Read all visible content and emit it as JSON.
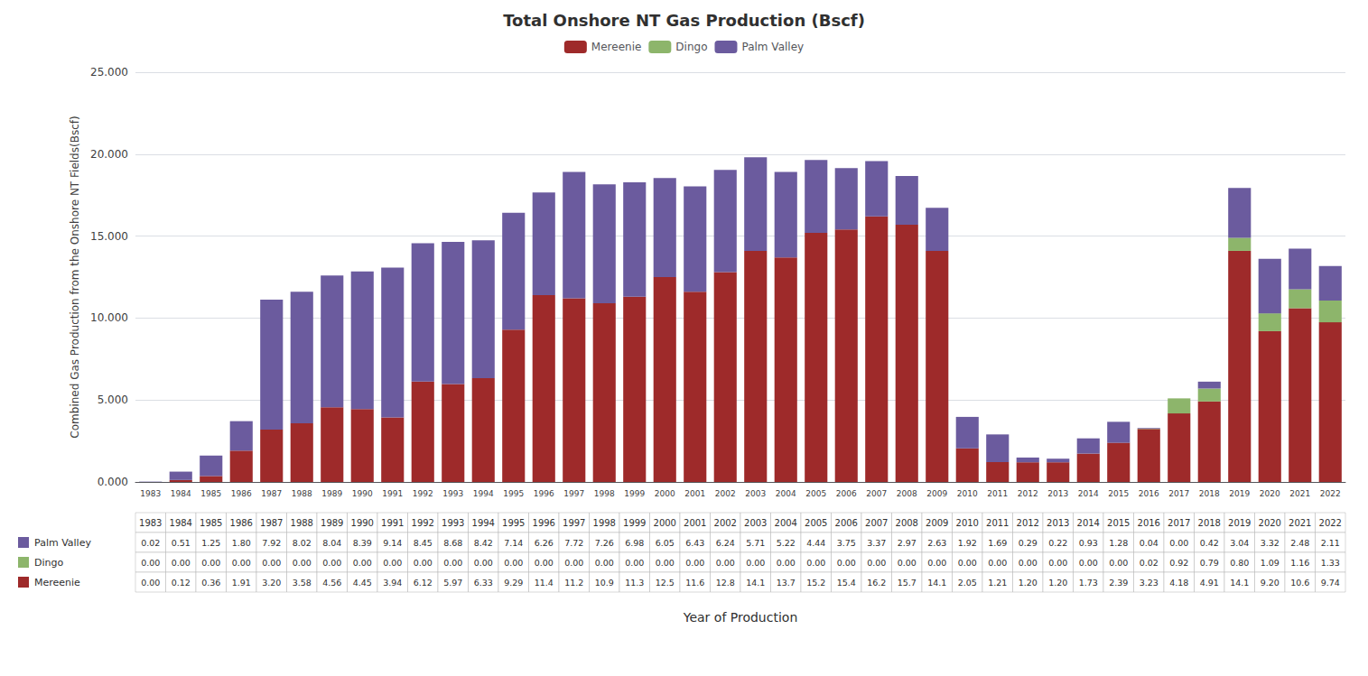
{
  "chart_data": {
    "type": "bar",
    "stacked": true,
    "title": "Total Onshore NT Gas Production (Bscf)",
    "ylabel": "Combined Gas Production from the Onshore NT Fields(Bscf)",
    "xlabel": "Year of Production",
    "categories": [
      "1983",
      "1984",
      "1985",
      "1986",
      "1987",
      "1988",
      "1989",
      "1990",
      "1991",
      "1992",
      "1993",
      "1994",
      "1995",
      "1996",
      "1997",
      "1998",
      "1999",
      "2000",
      "2001",
      "2002",
      "2003",
      "2004",
      "2005",
      "2006",
      "2007",
      "2008",
      "2009",
      "2010",
      "2011",
      "2012",
      "2013",
      "2014",
      "2015",
      "2016",
      "2017",
      "2018",
      "2019",
      "2020",
      "2021",
      "2022"
    ],
    "series": [
      {
        "name": "Mereenie",
        "color": "#9e2a2a",
        "values": [
          0.0,
          0.12,
          0.36,
          1.91,
          3.2,
          3.58,
          4.56,
          4.45,
          3.94,
          6.12,
          5.97,
          6.33,
          9.29,
          11.4,
          11.2,
          10.9,
          11.3,
          12.5,
          11.6,
          12.8,
          14.1,
          13.7,
          15.2,
          15.4,
          16.2,
          15.7,
          14.1,
          2.05,
          1.21,
          1.2,
          1.2,
          1.73,
          2.39,
          3.23,
          4.18,
          4.91,
          14.1,
          9.2,
          10.6,
          9.74
        ],
        "value_labels": [
          "0.00",
          "0.12",
          "0.36",
          "1.91",
          "3.20",
          "3.58",
          "4.56",
          "4.45",
          "3.94",
          "6.12",
          "5.97",
          "6.33",
          "9.29",
          "11.4",
          "11.2",
          "10.9",
          "11.3",
          "12.5",
          "11.6",
          "12.8",
          "14.1",
          "13.7",
          "15.2",
          "15.4",
          "16.2",
          "15.7",
          "14.1",
          "2.05",
          "1.21",
          "1.20",
          "1.20",
          "1.73",
          "2.39",
          "3.23",
          "4.18",
          "4.91",
          "14.1",
          "9.20",
          "10.6",
          "9.74"
        ]
      },
      {
        "name": "Dingo",
        "color": "#8db56b",
        "values": [
          0.0,
          0.0,
          0.0,
          0.0,
          0.0,
          0.0,
          0.0,
          0.0,
          0.0,
          0.0,
          0.0,
          0.0,
          0.0,
          0.0,
          0.0,
          0.0,
          0.0,
          0.0,
          0.0,
          0.0,
          0.0,
          0.0,
          0.0,
          0.0,
          0.0,
          0.0,
          0.0,
          0.0,
          0.0,
          0.0,
          0.0,
          0.0,
          0.0,
          0.02,
          0.92,
          0.79,
          0.8,
          1.09,
          1.16,
          1.33
        ],
        "value_labels": [
          "0.00",
          "0.00",
          "0.00",
          "0.00",
          "0.00",
          "0.00",
          "0.00",
          "0.00",
          "0.00",
          "0.00",
          "0.00",
          "0.00",
          "0.00",
          "0.00",
          "0.00",
          "0.00",
          "0.00",
          "0.00",
          "0.00",
          "0.00",
          "0.00",
          "0.00",
          "0.00",
          "0.00",
          "0.00",
          "0.00",
          "0.00",
          "0.00",
          "0.00",
          "0.00",
          "0.00",
          "0.00",
          "0.00",
          "0.02",
          "0.92",
          "0.79",
          "0.80",
          "1.09",
          "1.16",
          "1.33"
        ]
      },
      {
        "name": "Palm Valley",
        "color": "#6b5b9e",
        "values": [
          0.02,
          0.51,
          1.25,
          1.8,
          7.92,
          8.02,
          8.04,
          8.39,
          9.14,
          8.45,
          8.68,
          8.42,
          7.14,
          6.26,
          7.72,
          7.26,
          6.98,
          6.05,
          6.43,
          6.24,
          5.71,
          5.22,
          4.44,
          3.75,
          3.37,
          2.97,
          2.63,
          1.92,
          1.69,
          0.29,
          0.22,
          0.93,
          1.28,
          0.04,
          0.0,
          0.42,
          3.04,
          3.32,
          2.48,
          2.11
        ],
        "value_labels": [
          "0.02",
          "0.51",
          "1.25",
          "1.80",
          "7.92",
          "8.02",
          "8.04",
          "8.39",
          "9.14",
          "8.45",
          "8.68",
          "8.42",
          "7.14",
          "6.26",
          "7.72",
          "7.26",
          "6.98",
          "6.05",
          "6.43",
          "6.24",
          "5.71",
          "5.22",
          "4.44",
          "3.75",
          "3.37",
          "2.97",
          "2.63",
          "1.92",
          "1.69",
          "0.29",
          "0.22",
          "0.93",
          "1.28",
          "0.04",
          "0.00",
          "0.42",
          "3.04",
          "3.32",
          "2.48",
          "2.11"
        ]
      }
    ],
    "ylim": [
      0,
      25.0
    ],
    "yticks": [
      {
        "value": 0.0,
        "label": "0.000"
      },
      {
        "value": 5.0,
        "label": "5.000"
      },
      {
        "value": 10.0,
        "label": "10.000"
      },
      {
        "value": 15.0,
        "label": "15.000"
      },
      {
        "value": 20.0,
        "label": "20.000"
      },
      {
        "value": 25.0,
        "label": "25.000"
      }
    ],
    "grid": true,
    "legend": "top"
  }
}
